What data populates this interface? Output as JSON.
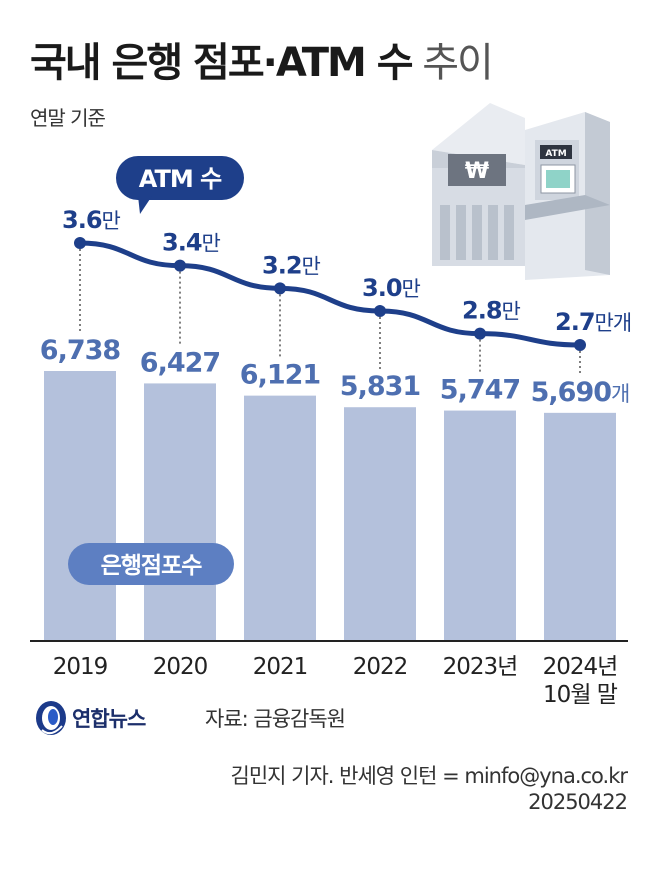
{
  "title_bold": "국내 은행 점포·ATM 수",
  "title_light": "추이",
  "subtitle": "연말 기준",
  "source": "자료: 금융감독원",
  "credit": "김민지 기자. 반세영 인턴 = minfo@yna.co.kr",
  "date": "20250422",
  "logo_text": "연합뉴스",
  "colors": {
    "bar": "#b4c1dc",
    "bar_label": "#4e6fb0",
    "line": "#1e3f8a",
    "pill_dark": "#1e3f8a",
    "pill_light": "#5d7fc2"
  },
  "chart_data": {
    "type": "bar",
    "categories": [
      "2019",
      "2020",
      "2021",
      "2022",
      "2023년",
      "2024년\n10월 말"
    ],
    "series": [
      {
        "name": "은행점포수",
        "type": "bar",
        "values": [
          6738,
          6427,
          6121,
          5831,
          5747,
          5690
        ],
        "labels": [
          "6,738",
          "6,427",
          "6,121",
          "5,831",
          "5,747",
          "5,690"
        ],
        "unit": "개"
      },
      {
        "name": "ATM 수",
        "type": "line",
        "values": [
          3.6,
          3.4,
          3.2,
          3.0,
          2.8,
          2.7
        ],
        "labels": [
          "3.6",
          "3.4",
          "3.2",
          "3.0",
          "2.8",
          "2.7"
        ],
        "unit_first": "만",
        "unit_last": "만개"
      }
    ],
    "ylim": [
      0,
      8000
    ]
  }
}
